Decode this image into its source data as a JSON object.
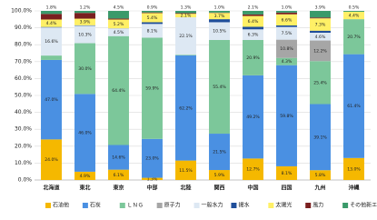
{
  "chart_data": {
    "type": "stacked_bar",
    "categories": [
      "北海道",
      "東北",
      "東京",
      "中部",
      "北陸",
      "関西",
      "中国",
      "四国",
      "九州",
      "沖縄"
    ],
    "ylim": [
      0,
      100
    ],
    "yticks": [
      {
        "value": 0,
        "label": "0.0%"
      },
      {
        "value": 10,
        "label": "10.0%"
      },
      {
        "value": 20,
        "label": "20.0%"
      },
      {
        "value": 30,
        "label": "30.0%"
      },
      {
        "value": 40,
        "label": "40.0%"
      },
      {
        "value": 50,
        "label": "50.0%"
      },
      {
        "value": 60,
        "label": "60.0%"
      },
      {
        "value": 70,
        "label": "70.0%"
      },
      {
        "value": 80,
        "label": "80.0%"
      },
      {
        "value": 90,
        "label": "90.0%"
      },
      {
        "value": 100,
        "label": "100.0%"
      }
    ],
    "grid": true,
    "series": [
      {
        "name": "石油他",
        "color": "#f5b800",
        "values": [
          24.0,
          4.9,
          6.1,
          1.3,
          11.5,
          5.9,
          12.7,
          8.1,
          5.8,
          13.0
        ],
        "value_labels": [
          "24.0%",
          "4.9%",
          "6.1%",
          "1.3%",
          "11.5%",
          "5.9%",
          "12.7%",
          "8.1%",
          "5.8%",
          "13.0%"
        ]
      },
      {
        "name": "石炭",
        "color": "#4a90e2",
        "values": [
          47.0,
          46.0,
          14.6,
          23.0,
          62.2,
          21.5,
          49.2,
          59.8,
          39.1,
          61.4
        ],
        "value_labels": [
          "47.0%",
          "46.0%",
          "14.6%",
          "23.0%",
          "62.2%",
          "21.5%",
          "49.2%",
          "59.8%",
          "39.1%",
          "61.4%"
        ]
      },
      {
        "name": "ＬＮＧ",
        "color": "#7cc79a",
        "values": [
          2.6,
          30.0,
          64.4,
          59.9,
          0.4,
          55.4,
          20.9,
          4.3,
          25.4,
          20.7
        ],
        "value_labels": [
          null,
          "30.0%",
          "64.4%",
          "59.9%",
          null,
          "55.4%",
          "20.9%",
          "4.3%",
          "25.4%",
          "20.7%"
        ]
      },
      {
        "name": "原子力",
        "color": "#a6a6a6",
        "values": [
          0,
          0,
          0,
          0,
          0,
          0,
          0,
          10.8,
          12.2,
          0
        ],
        "value_labels": [
          null,
          null,
          null,
          null,
          null,
          null,
          null,
          "10.8%",
          "12.2%",
          null
        ]
      },
      {
        "name": "一般水力",
        "color": "#dde8f3",
        "values": [
          16.6,
          10.3,
          4.5,
          8.1,
          22.1,
          10.5,
          6.3,
          7.5,
          4.6,
          0
        ],
        "value_labels": [
          "16.6%",
          "10.3%",
          "4.5%",
          "8.1%",
          "22.1%",
          "10.5%",
          "6.3%",
          "7.5%",
          "4.6%",
          null
        ]
      },
      {
        "name": "揚水",
        "color": "#1f4e9a",
        "values": [
          0.3,
          0.3,
          0.1,
          1.0,
          0,
          1.8,
          1.5,
          0.9,
          1.2,
          0
        ],
        "value_labels": [
          null,
          null,
          null,
          null,
          null,
          null,
          null,
          null,
          null,
          null
        ]
      },
      {
        "name": "太陽光",
        "color": "#fff066",
        "values": [
          4.4,
          3.9,
          5.2,
          5.4,
          2.1,
          3.7,
          6.4,
          6.6,
          7.3,
          4.4
        ],
        "value_labels": [
          "4.4%",
          "3.9%",
          "5.2%",
          "5.4%",
          "2.1%",
          "3.7%",
          "6.4%",
          "6.6%",
          "7.3%",
          "4.4%"
        ]
      },
      {
        "name": "風力",
        "color": "#7a1f1f",
        "values": [
          3.3,
          3.4,
          0.6,
          0.4,
          0.4,
          0.2,
          0.9,
          1.0,
          0.5,
          0.0
        ],
        "value_labels": [
          null,
          null,
          null,
          null,
          null,
          null,
          null,
          null,
          null,
          null
        ]
      },
      {
        "name": "その他新エネ",
        "color": "#3a9a6a",
        "values": [
          1.8,
          1.2,
          4.5,
          0.9,
          1.3,
          1.0,
          2.1,
          1.0,
          3.9,
          0.5
        ],
        "value_labels": [
          "1.8%",
          "1.2%",
          "4.5%",
          "0.9%",
          "1.3%",
          "1.0%",
          "2.1%",
          "1.0%",
          "3.9%",
          "0.5%"
        ]
      }
    ]
  }
}
